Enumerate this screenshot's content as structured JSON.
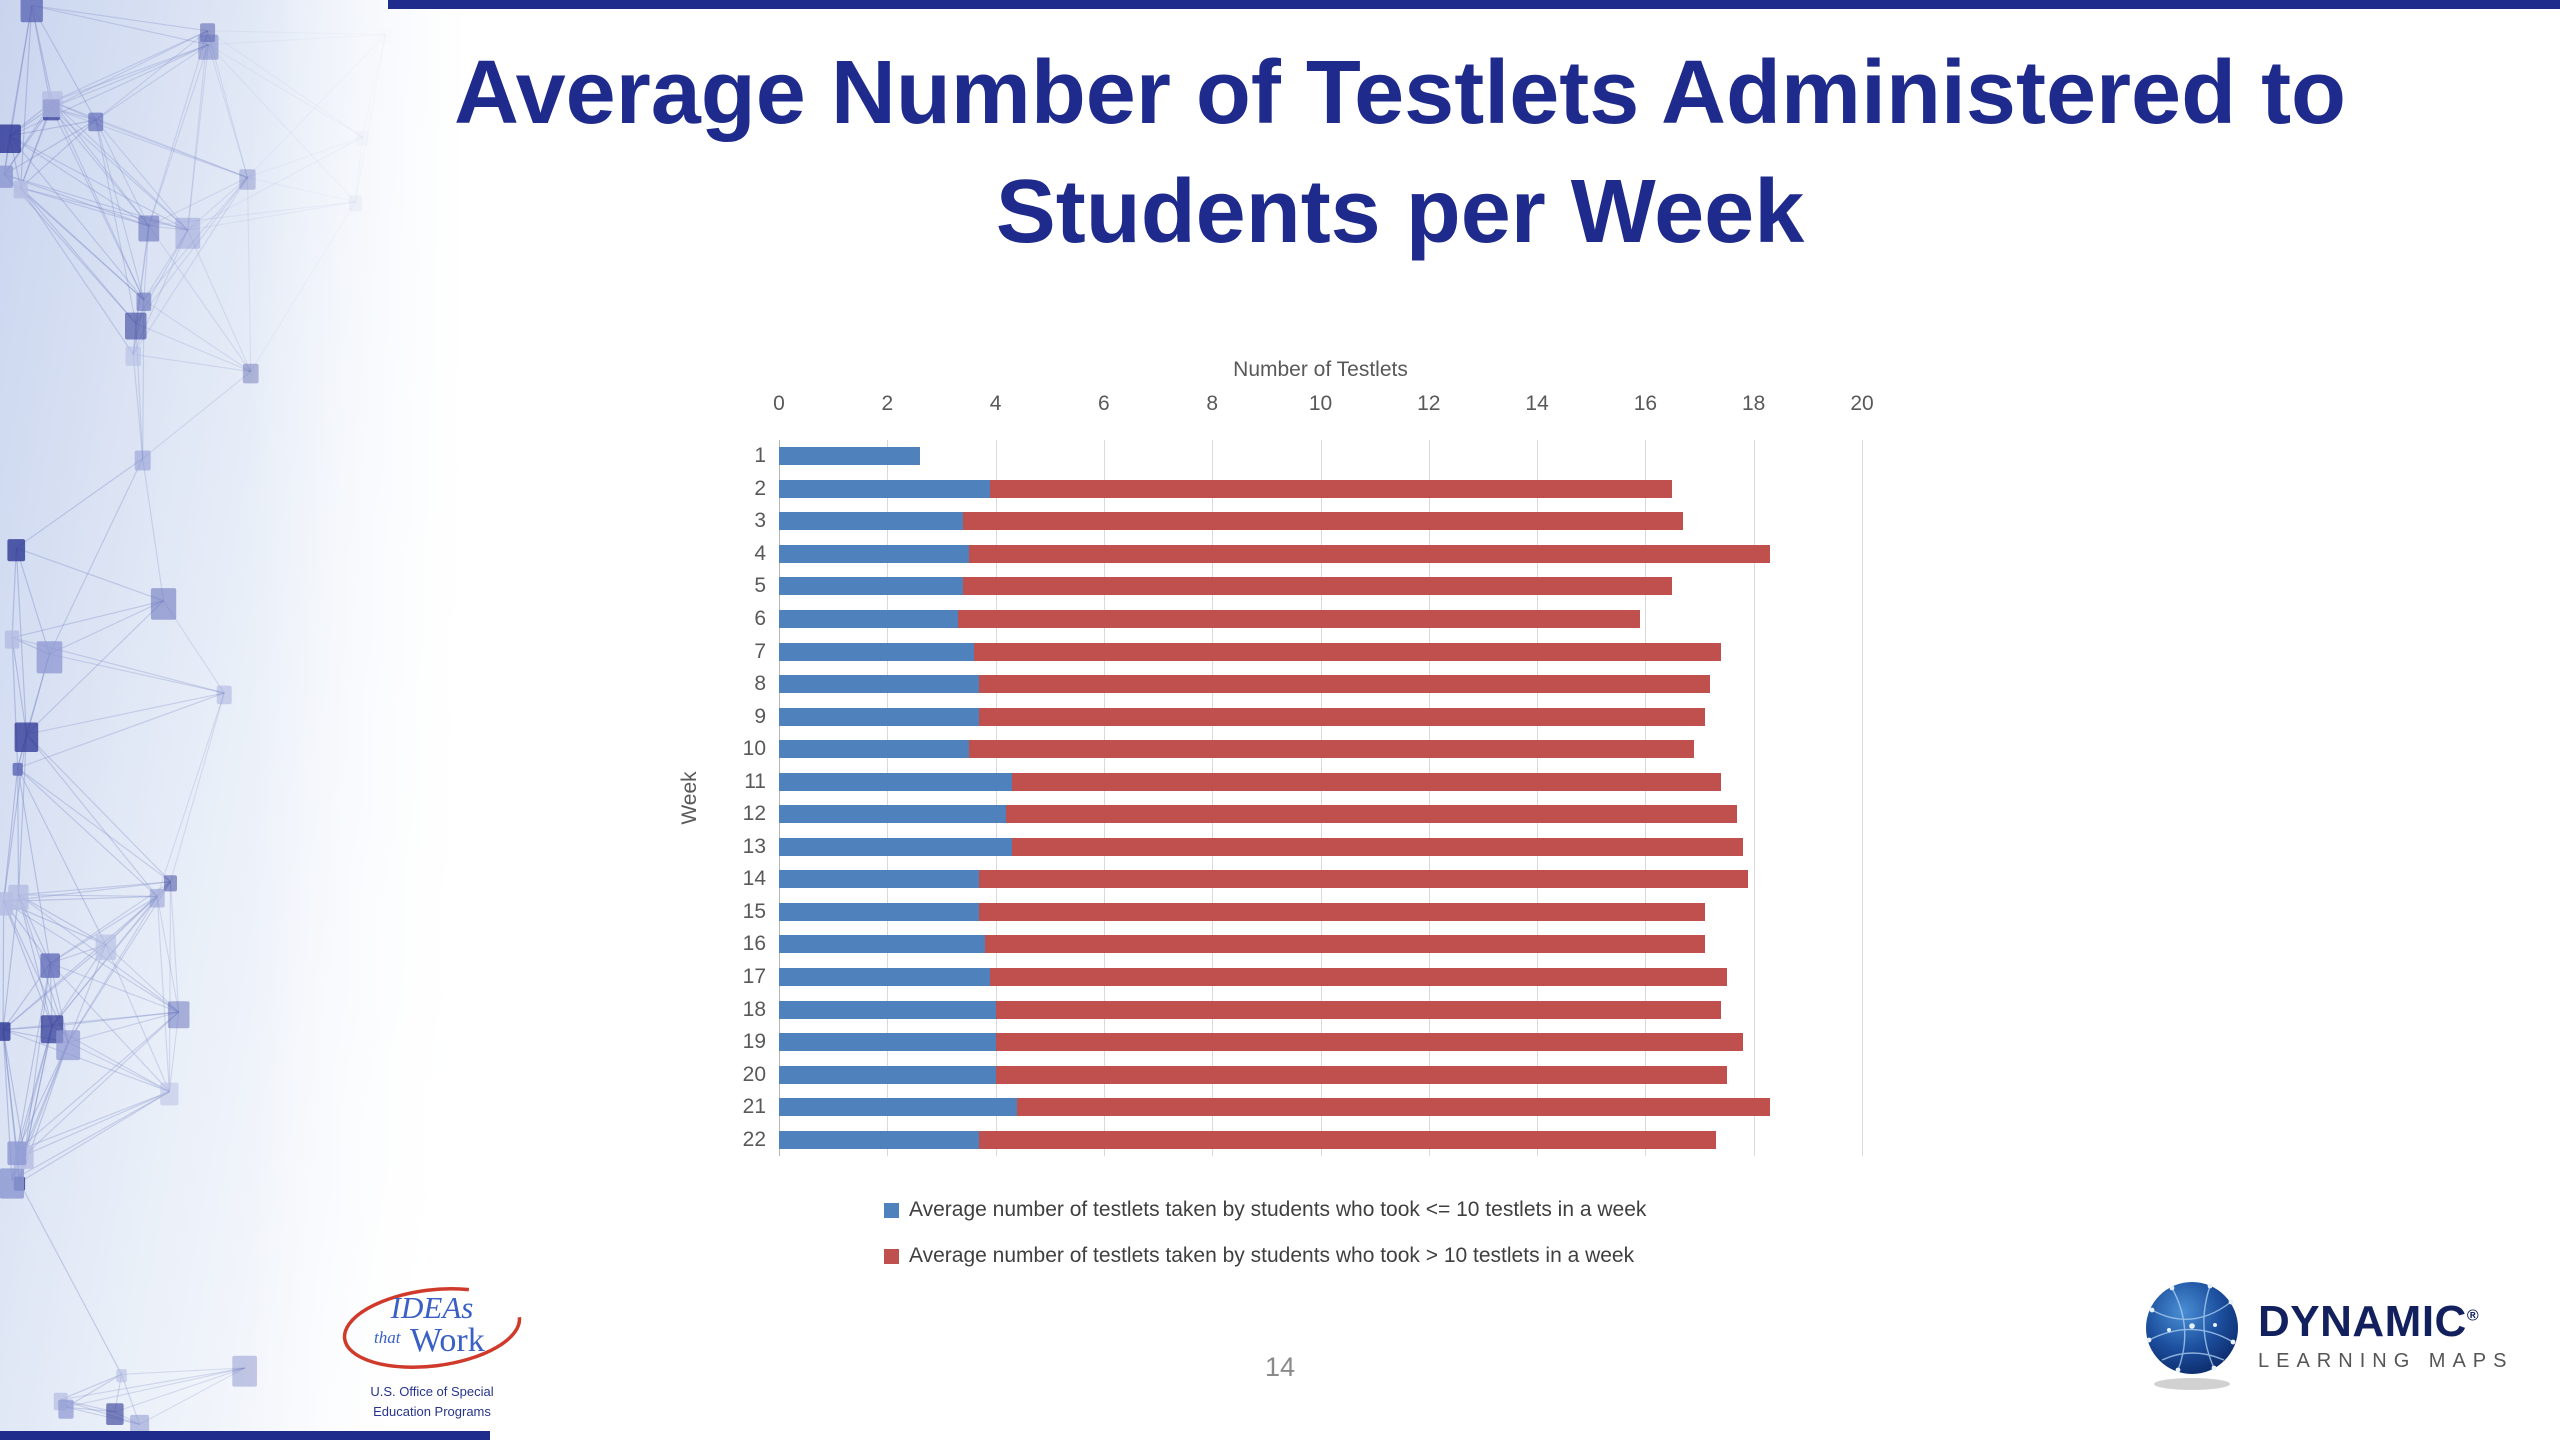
{
  "slide": {
    "title_line1": "Average Number of Testlets Administered to",
    "title_line2": "Students per Week",
    "page_number": "14",
    "accent_navy": "#1f2b8c"
  },
  "logos": {
    "ideas": {
      "line1": "IDEAs",
      "line2": "that",
      "line3": "Work",
      "caption1": "U.S. Office of Special",
      "caption2": "Education Programs"
    },
    "dlm": {
      "name": "DYNAMIC",
      "registered": "®",
      "subname": "LEARNING MAPS"
    }
  },
  "chart_data": {
    "type": "bar",
    "orientation": "horizontal",
    "stacked": true,
    "xlabel": "Number of Testlets",
    "ylabel": "Week",
    "xlim": [
      0,
      20
    ],
    "xticks": [
      0,
      2,
      4,
      6,
      8,
      10,
      12,
      14,
      16,
      18,
      20
    ],
    "grid": true,
    "legend_position": "bottom",
    "categories": [
      1,
      2,
      3,
      4,
      5,
      6,
      7,
      8,
      9,
      10,
      11,
      12,
      13,
      14,
      15,
      16,
      17,
      18,
      19,
      20,
      21,
      22
    ],
    "series": [
      {
        "name": "Average number of testlets taken by students who took <= 10 testlets in a week",
        "color": "#4F81BD",
        "values": [
          2.6,
          3.9,
          3.4,
          3.5,
          3.4,
          3.3,
          3.6,
          3.7,
          3.7,
          3.5,
          4.3,
          4.2,
          4.3,
          3.7,
          3.7,
          3.8,
          3.9,
          4.0,
          4.0,
          4.0,
          4.4,
          3.7
        ]
      },
      {
        "name": "Average number of testlets taken by students who took > 10 testlets in a week",
        "color": "#C0504D",
        "values": [
          0,
          12.6,
          13.3,
          14.8,
          13.1,
          12.6,
          13.8,
          13.5,
          13.4,
          13.4,
          13.1,
          13.5,
          13.5,
          14.2,
          13.4,
          13.3,
          13.6,
          13.4,
          13.8,
          13.5,
          13.9,
          13.6
        ]
      }
    ],
    "stacked_totals": [
      2.6,
      16.5,
      16.7,
      18.3,
      16.5,
      15.9,
      17.4,
      17.2,
      17.1,
      16.9,
      17.4,
      17.7,
      17.8,
      17.9,
      17.1,
      17.1,
      17.5,
      17.4,
      17.8,
      17.5,
      18.3,
      17.3
    ]
  }
}
